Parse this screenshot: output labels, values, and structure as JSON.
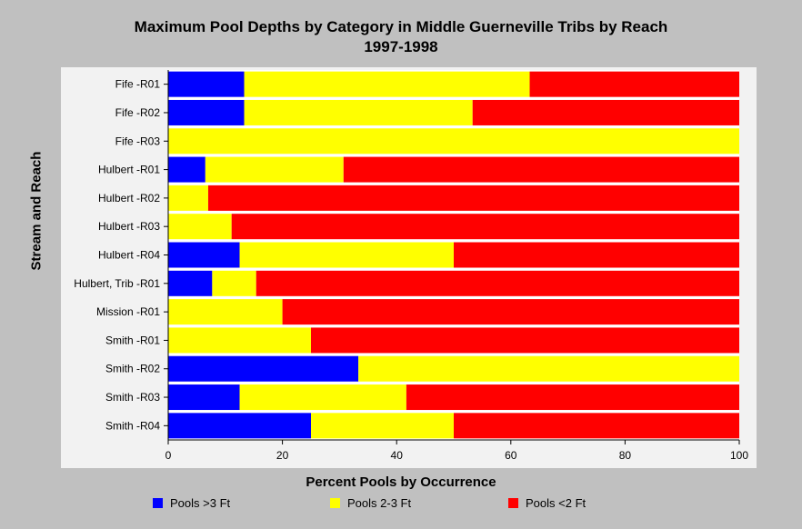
{
  "chart_data": {
    "type": "bar",
    "orientation": "horizontal",
    "stacked": true,
    "title": "Maximum Pool Depths by Category in Middle Guerneville Tribs by Reach",
    "subtitle": "1997-1998",
    "xlabel": "Percent Pools by Occurrence",
    "ylabel": "Stream and Reach",
    "xlim": [
      0,
      100
    ],
    "xticks": [
      0,
      20,
      40,
      60,
      80,
      100
    ],
    "grid": false,
    "legend_position": "bottom",
    "categories": [
      "Fife -R01",
      "Fife -R02",
      "Fife -R03",
      "Hulbert -R01",
      "Hulbert -R02",
      "Hulbert -R03",
      "Hulbert -R04",
      "Hulbert, Trib -R01",
      "Mission -R01",
      "Smith -R01",
      "Smith -R02",
      "Smith -R03",
      "Smith -R04"
    ],
    "series": [
      {
        "name": "Pools >3 Ft",
        "color": "#0000ff",
        "values": [
          13.3,
          13.3,
          0,
          6.5,
          0,
          0,
          12.5,
          7.7,
          0,
          0,
          33.3,
          12.5,
          25
        ]
      },
      {
        "name": "Pools 2-3 Ft",
        "color": "#ffff00",
        "values": [
          50,
          40,
          100,
          24.2,
          7,
          11.1,
          37.5,
          7.7,
          20,
          25,
          66.7,
          29.2,
          25
        ]
      },
      {
        "name": "Pools <2 Ft",
        "color": "#ff0000",
        "values": [
          36.7,
          46.7,
          0,
          69.3,
          93,
          88.9,
          50,
          84.6,
          80,
          75,
          0,
          58.3,
          50
        ]
      }
    ]
  }
}
